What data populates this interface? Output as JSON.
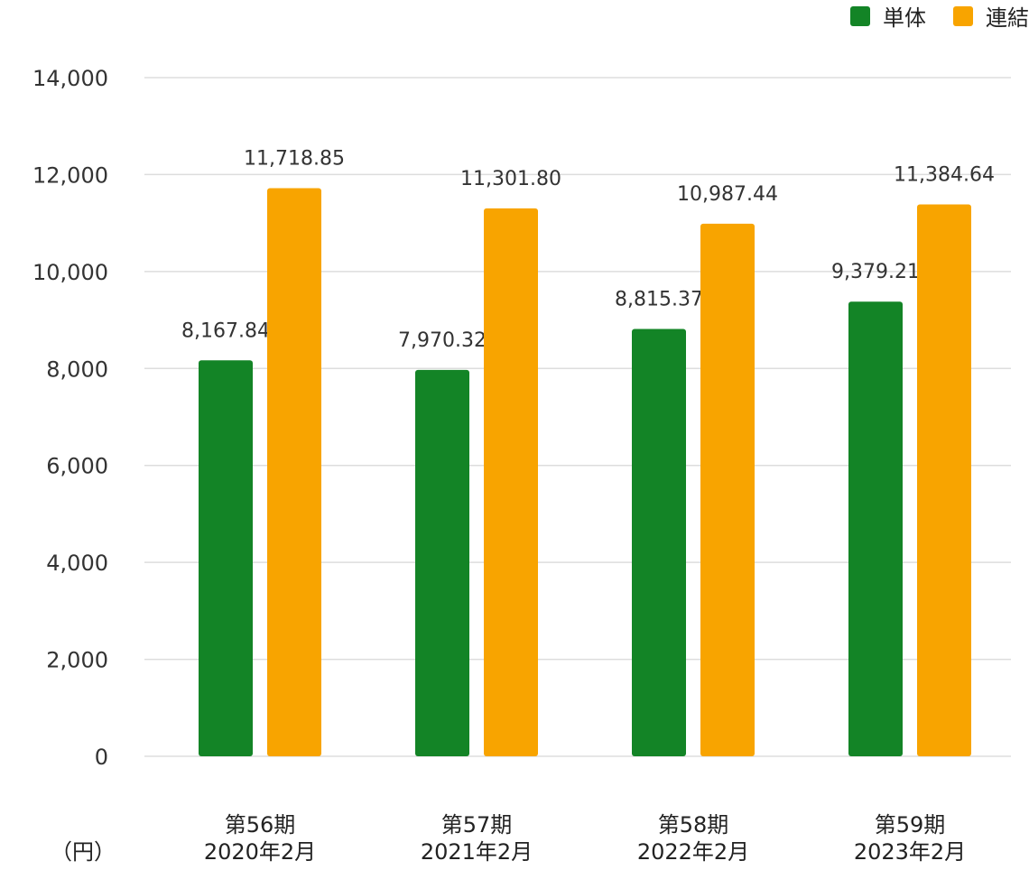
{
  "unit_label": "（円）",
  "legend": [
    {
      "label": "単体",
      "color": "#138426"
    },
    {
      "label": "連結",
      "color": "#f8a400"
    }
  ],
  "chart_data": {
    "type": "bar",
    "categories": [
      {
        "period": "第56期",
        "date": "2020年2月"
      },
      {
        "period": "第57期",
        "date": "2021年2月"
      },
      {
        "period": "第58期",
        "date": "2022年2月"
      },
      {
        "period": "第59期",
        "date": "2023年2月"
      }
    ],
    "series": [
      {
        "name": "単体",
        "color": "#138426",
        "values": [
          8167.84,
          7970.32,
          8815.37,
          9379.21
        ],
        "labels": [
          "8,167.84",
          "7,970.32",
          "8,815.37",
          "9,379.21"
        ]
      },
      {
        "name": "連結",
        "color": "#f8a400",
        "values": [
          11718.85,
          11301.8,
          10987.44,
          11384.64
        ],
        "labels": [
          "11,718.85",
          "11,301.80",
          "10,987.44",
          "11,384.64"
        ]
      }
    ],
    "ylim": [
      0,
      14000
    ],
    "yticks": [
      0,
      2000,
      4000,
      6000,
      8000,
      10000,
      12000,
      14000
    ],
    "ytick_labels": [
      "0",
      "2,000",
      "4,000",
      "6,000",
      "8,000",
      "10,000",
      "12,000",
      "14,000"
    ],
    "grid": true,
    "legend_position": "top-right",
    "ylabel": "（円）"
  }
}
